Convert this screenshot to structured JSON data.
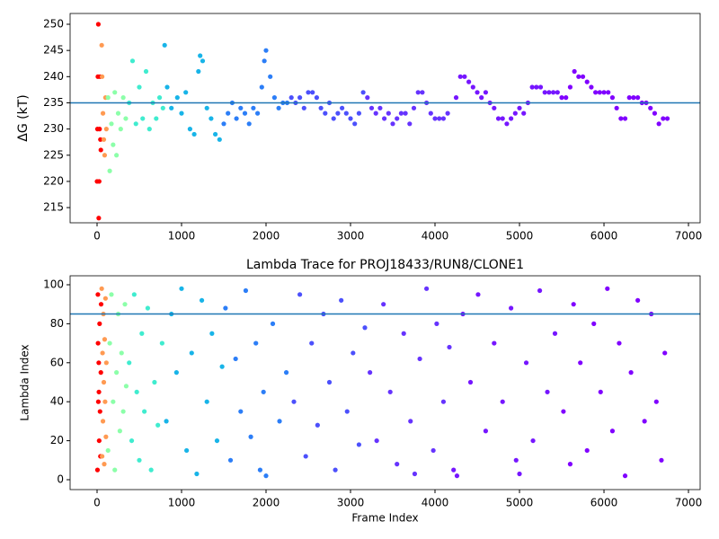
{
  "chart_data": [
    {
      "type": "scatter",
      "y_label": "ΔG (kT)",
      "xlim": [
        -319,
        7138
      ],
      "ylim": [
        212.1,
        252.06
      ],
      "xticks": [
        0,
        1000,
        2000,
        3000,
        4000,
        5000,
        6000,
        7000
      ],
      "yticks": [
        215,
        220,
        225,
        230,
        235,
        240,
        245,
        250
      ],
      "hline": 235,
      "hline_color": "#1f77b4",
      "series": [
        {
          "color": "#ff0000",
          "x": [
            0,
            5,
            10,
            15,
            20,
            25,
            30,
            35,
            40,
            45
          ],
          "values": [
            220,
            230,
            240,
            250,
            213,
            220,
            230,
            240,
            228,
            226
          ]
        },
        {
          "color": "#ff9a52",
          "x": [
            55,
            60,
            70,
            80,
            90,
            100,
            110
          ],
          "values": [
            246,
            240,
            233,
            228,
            225,
            236,
            230
          ]
        },
        {
          "color": "#8cffa9",
          "x": [
            130,
            150,
            170,
            190,
            210,
            230,
            250,
            280,
            310,
            340
          ],
          "values": [
            236,
            222,
            231,
            227,
            237,
            225,
            233,
            230,
            236,
            232
          ]
        },
        {
          "color": "#40eccf",
          "x": [
            380,
            420,
            460,
            500,
            540,
            580,
            620,
            660,
            700,
            740,
            780
          ],
          "values": [
            235,
            243,
            231,
            238,
            232,
            241,
            230,
            235,
            232,
            236,
            234
          ]
        },
        {
          "color": "#18b4e8",
          "x": [
            800,
            830,
            880,
            950,
            1000,
            1050,
            1100,
            1150,
            1200,
            1220,
            1250,
            1300,
            1350,
            1400,
            1450
          ],
          "values": [
            246,
            238,
            234,
            236,
            233,
            237,
            230,
            229,
            241,
            244,
            243,
            234,
            232,
            229,
            228
          ]
        },
        {
          "color": "#2c7ef7",
          "x": [
            1500,
            1550,
            1600,
            1650,
            1700,
            1750,
            1800,
            1850,
            1900,
            1950,
            1980,
            2000,
            2050,
            2100,
            2150,
            2200,
            2250
          ],
          "values": [
            231,
            233,
            235,
            232,
            234,
            233,
            231,
            234,
            233,
            238,
            243,
            245,
            240,
            236,
            234,
            235,
            235
          ]
        },
        {
          "color": "#4c50fc",
          "x": [
            2300,
            2350,
            2400,
            2450,
            2500,
            2550,
            2600,
            2650,
            2700,
            2750,
            2800,
            2850,
            2900,
            2950,
            3000,
            3050,
            3100,
            3150
          ],
          "values": [
            236,
            235,
            236,
            234,
            237,
            237,
            236,
            234,
            233,
            235,
            232,
            233,
            234,
            233,
            232,
            231,
            233,
            237
          ]
        },
        {
          "color": "#6633fe",
          "x": [
            3200,
            3250,
            3300,
            3350,
            3400,
            3450,
            3500,
            3550,
            3600,
            3650,
            3700,
            3750,
            3800,
            3850,
            3900,
            3950,
            4000,
            4050,
            4100,
            4150
          ],
          "values": [
            236,
            234,
            233,
            234,
            232,
            233,
            231,
            232,
            233,
            233,
            231,
            234,
            237,
            237,
            235,
            233,
            232,
            232,
            232,
            233
          ]
        },
        {
          "color": "#7616ff",
          "x": [
            4250,
            4300,
            4350,
            4400,
            4450,
            4500,
            4550,
            4600,
            4650,
            4700,
            4750,
            4800,
            4850,
            4900,
            4950,
            5000,
            5050,
            5100,
            5150,
            5200,
            5250,
            5300,
            5350,
            5400,
            5450
          ],
          "values": [
            236,
            240,
            240,
            239,
            238,
            237,
            236,
            237,
            235,
            234,
            232,
            232,
            231,
            232,
            233,
            234,
            233,
            235,
            238,
            238,
            238,
            237,
            237,
            237,
            237
          ]
        },
        {
          "color": "#8000ff",
          "x": [
            5500,
            5550,
            5600,
            5650,
            5700,
            5750,
            5800,
            5850,
            5900,
            5950,
            6000,
            6050,
            6100,
            6150,
            6200,
            6250,
            6300,
            6350,
            6400,
            6450,
            6500,
            6550,
            6600,
            6650,
            6700,
            6750
          ],
          "values": [
            236,
            236,
            238,
            241,
            240,
            240,
            239,
            238,
            237,
            237,
            237,
            237,
            236,
            234,
            232,
            232,
            236,
            236,
            236,
            235,
            235,
            234,
            233,
            231,
            232,
            232
          ]
        }
      ]
    },
    {
      "type": "scatter",
      "title": "Lambda Trace for PROJ18433/RUN8/CLONE1",
      "x_label": "Frame Index",
      "y_label": "Lambda Index",
      "xlim": [
        -319,
        7138
      ],
      "ylim": [
        -5.07,
        104.6
      ],
      "xticks": [
        0,
        1000,
        2000,
        3000,
        4000,
        5000,
        6000,
        7000
      ],
      "yticks": [
        0,
        20,
        40,
        60,
        80,
        100
      ],
      "hline": 85,
      "hline_color": "#1f77b4",
      "series": [
        {
          "color": "#ff0000",
          "x": [
            5,
            10,
            15,
            20,
            25,
            30,
            35,
            40,
            45,
            48,
            12,
            22
          ],
          "values": [
            5,
            95,
            40,
            60,
            20,
            80,
            35,
            12,
            55,
            90,
            70,
            45
          ]
        },
        {
          "color": "#ff9a52",
          "x": [
            55,
            60,
            65,
            70,
            75,
            80,
            85,
            90,
            95,
            100,
            105,
            110
          ],
          "values": [
            98,
            12,
            65,
            30,
            85,
            50,
            8,
            72,
            40,
            93,
            22,
            60
          ]
        },
        {
          "color": "#8cffa9",
          "x": [
            130,
            150,
            170,
            190,
            210,
            230,
            250,
            270,
            290,
            310,
            330,
            345
          ],
          "values": [
            15,
            70,
            95,
            40,
            5,
            55,
            85,
            25,
            65,
            35,
            90,
            48
          ]
        },
        {
          "color": "#40eccf",
          "x": [
            380,
            410,
            440,
            470,
            500,
            530,
            560,
            600,
            640,
            680,
            720,
            770
          ],
          "values": [
            60,
            20,
            95,
            45,
            10,
            75,
            35,
            88,
            5,
            50,
            28,
            70
          ]
        },
        {
          "color": "#18b4e8",
          "x": [
            820,
            880,
            940,
            1000,
            1060,
            1120,
            1180,
            1240,
            1300,
            1360,
            1420,
            1480
          ],
          "values": [
            30,
            85,
            55,
            98,
            15,
            65,
            3,
            92,
            40,
            75,
            20,
            58
          ]
        },
        {
          "color": "#2c7ef7",
          "x": [
            1520,
            1580,
            1640,
            1700,
            1760,
            1820,
            1880,
            1930,
            1970,
            2000,
            2080,
            2160,
            2240
          ],
          "values": [
            88,
            10,
            62,
            35,
            97,
            22,
            70,
            5,
            45,
            2,
            80,
            30,
            55
          ]
        },
        {
          "color": "#4c50fc",
          "x": [
            2330,
            2400,
            2470,
            2540,
            2610,
            2680,
            2750,
            2820,
            2890,
            2960,
            3030,
            3100,
            3170
          ],
          "values": [
            40,
            95,
            12,
            70,
            28,
            85,
            50,
            5,
            92,
            35,
            65,
            18,
            78
          ]
        },
        {
          "color": "#6633fe",
          "x": [
            3230,
            3310,
            3390,
            3470,
            3550,
            3630,
            3710,
            3760,
            3820,
            3900,
            3980,
            4020,
            4100,
            4170
          ],
          "values": [
            55,
            20,
            90,
            45,
            8,
            75,
            30,
            3,
            62,
            98,
            15,
            80,
            40,
            68
          ]
        },
        {
          "color": "#7616ff",
          "x": [
            4220,
            4260,
            4330,
            4420,
            4510,
            4600,
            4700,
            4800,
            4900,
            4960,
            5000,
            5080,
            5160,
            5240,
            5330,
            5420
          ],
          "values": [
            5,
            2,
            85,
            50,
            95,
            25,
            70,
            40,
            88,
            10,
            3,
            60,
            20,
            97,
            45,
            75
          ]
        },
        {
          "color": "#8000ff",
          "x": [
            5520,
            5600,
            5640,
            5720,
            5800,
            5880,
            5960,
            6040,
            6100,
            6180,
            6250,
            6320,
            6400,
            6480,
            6560,
            6620,
            6680,
            6720
          ],
          "values": [
            35,
            8,
            90,
            60,
            15,
            80,
            45,
            98,
            25,
            70,
            2,
            55,
            92,
            30,
            85,
            40,
            10,
            65
          ]
        }
      ]
    }
  ]
}
